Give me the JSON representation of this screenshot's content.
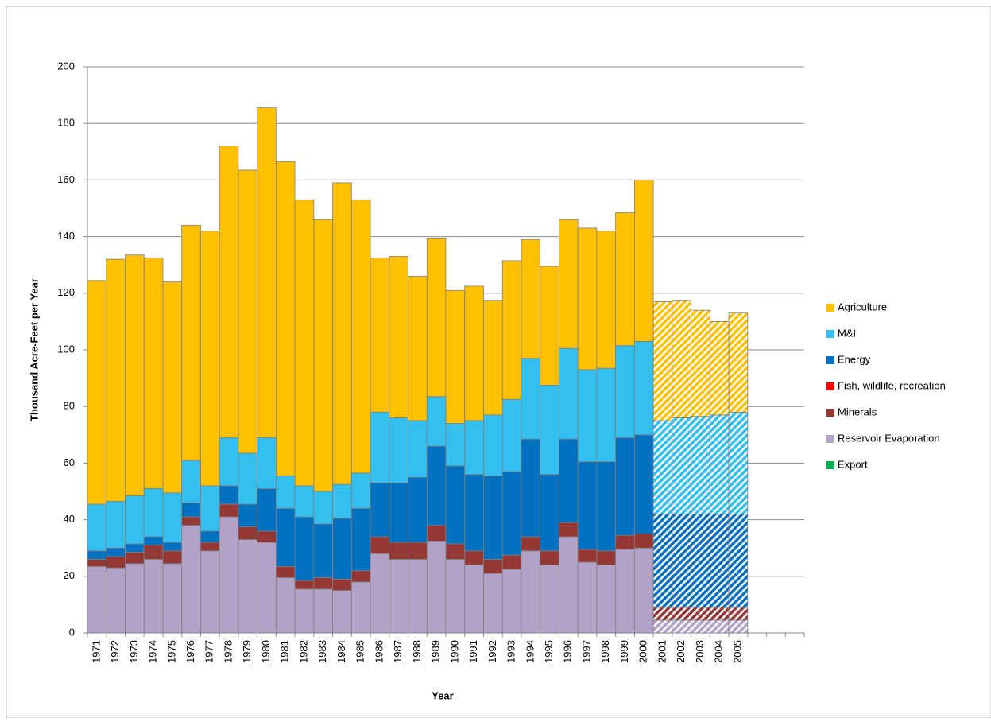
{
  "chart_data": {
    "type": "stacked_bar",
    "x_label": "Year",
    "y_label": "Thousand Acre-Feet per Year",
    "categories": [
      "1971",
      "1972",
      "1973",
      "1974",
      "1975",
      "1976",
      "1977",
      "1978",
      "1979",
      "1980",
      "1981",
      "1982",
      "1983",
      "1984",
      "1985",
      "1986",
      "1987",
      "1988",
      "1989",
      "1990",
      "1991",
      "1992",
      "1993",
      "1994",
      "1995",
      "1996",
      "1997",
      "1998",
      "1999",
      "2000",
      "2001",
      "2002",
      "2003",
      "2004",
      "2005",
      null,
      null,
      null
    ],
    "hatched": [
      false,
      false,
      false,
      false,
      false,
      false,
      false,
      false,
      false,
      false,
      false,
      false,
      false,
      false,
      false,
      false,
      false,
      false,
      false,
      false,
      false,
      false,
      false,
      false,
      false,
      false,
      false,
      false,
      false,
      false,
      true,
      true,
      true,
      true,
      true,
      false,
      false,
      false
    ],
    "series": [
      {
        "name": "Export",
        "color": "#00B050",
        "values": [
          0,
          0,
          0,
          0,
          0,
          0,
          0,
          0,
          0,
          0,
          0,
          0,
          0,
          0,
          0,
          0,
          0,
          0,
          0,
          0,
          0,
          0,
          0,
          0,
          0,
          0,
          0,
          0,
          0,
          0,
          0,
          0,
          0,
          0,
          0,
          null,
          null,
          null
        ]
      },
      {
        "name": "Reservoir Evaporation",
        "color": "#B3A2C7",
        "values": [
          23.5,
          23,
          24.5,
          26,
          24.5,
          38,
          29,
          41,
          33,
          32,
          19.5,
          15.5,
          15.5,
          15,
          18,
          28,
          26,
          26,
          32.5,
          26,
          24,
          21,
          22.5,
          29,
          24,
          34,
          25,
          24,
          29.5,
          30,
          4.5,
          4.5,
          4.5,
          4.5,
          4.5,
          null,
          null,
          null
        ]
      },
      {
        "name": "Minerals",
        "color": "#953735",
        "values": [
          2.5,
          4,
          4,
          5,
          4.5,
          3,
          3,
          4.5,
          4.5,
          4,
          4,
          3,
          4,
          4,
          4,
          6,
          6,
          6,
          5.5,
          5.5,
          5,
          5,
          5,
          5,
          5,
          5,
          4.5,
          5,
          5,
          5,
          4.5,
          4.5,
          4.5,
          4.5,
          4.5,
          null,
          null,
          null
        ]
      },
      {
        "name": "Fish, wildlife, recreation",
        "color": "#FF0000",
        "values": [
          0,
          0,
          0,
          0,
          0,
          0,
          0,
          0,
          0,
          0,
          0,
          0,
          0,
          0,
          0,
          0,
          0,
          0,
          0,
          0,
          0,
          0,
          0,
          0,
          0,
          0,
          0,
          0,
          0,
          0,
          0,
          0,
          0,
          0,
          0,
          null,
          null,
          null
        ]
      },
      {
        "name": "Energy",
        "color": "#0070C0",
        "values": [
          3,
          3,
          3,
          3,
          3,
          5,
          4,
          6.5,
          8,
          15,
          20.5,
          22.5,
          19,
          21.5,
          22,
          19,
          21,
          23,
          28,
          27.5,
          27,
          29.5,
          29.5,
          34.5,
          27,
          29.5,
          31,
          31.5,
          34.5,
          35,
          33,
          33,
          33,
          33,
          33,
          null,
          null,
          null
        ]
      },
      {
        "name": "M&I",
        "color": "#33BFEF",
        "values": [
          16.5,
          16.5,
          17,
          17,
          17.5,
          15,
          16,
          17,
          18,
          18,
          11.5,
          11,
          11.5,
          12,
          12.5,
          25,
          23,
          20,
          17.5,
          15,
          19,
          21.5,
          25.5,
          28.5,
          31.5,
          32,
          32.5,
          33,
          32.5,
          33,
          33,
          34,
          34.5,
          35,
          36,
          null,
          null,
          null
        ]
      },
      {
        "name": "Agriculture",
        "color": "#FFC000",
        "values": [
          79,
          85.5,
          85,
          81.5,
          74.5,
          83,
          90,
          103,
          100,
          116.5,
          111,
          101,
          96,
          106.5,
          96.5,
          54.5,
          57,
          51,
          56,
          47,
          47.5,
          40.5,
          49,
          42,
          42,
          45.5,
          50,
          48.5,
          47,
          57,
          42,
          41.5,
          37.5,
          33,
          35,
          null,
          null,
          null
        ]
      }
    ],
    "ylim": [
      0,
      200
    ],
    "yticks": [
      0,
      20,
      40,
      60,
      80,
      100,
      120,
      140,
      160,
      180,
      200
    ],
    "grid": true,
    "legend": "right"
  }
}
